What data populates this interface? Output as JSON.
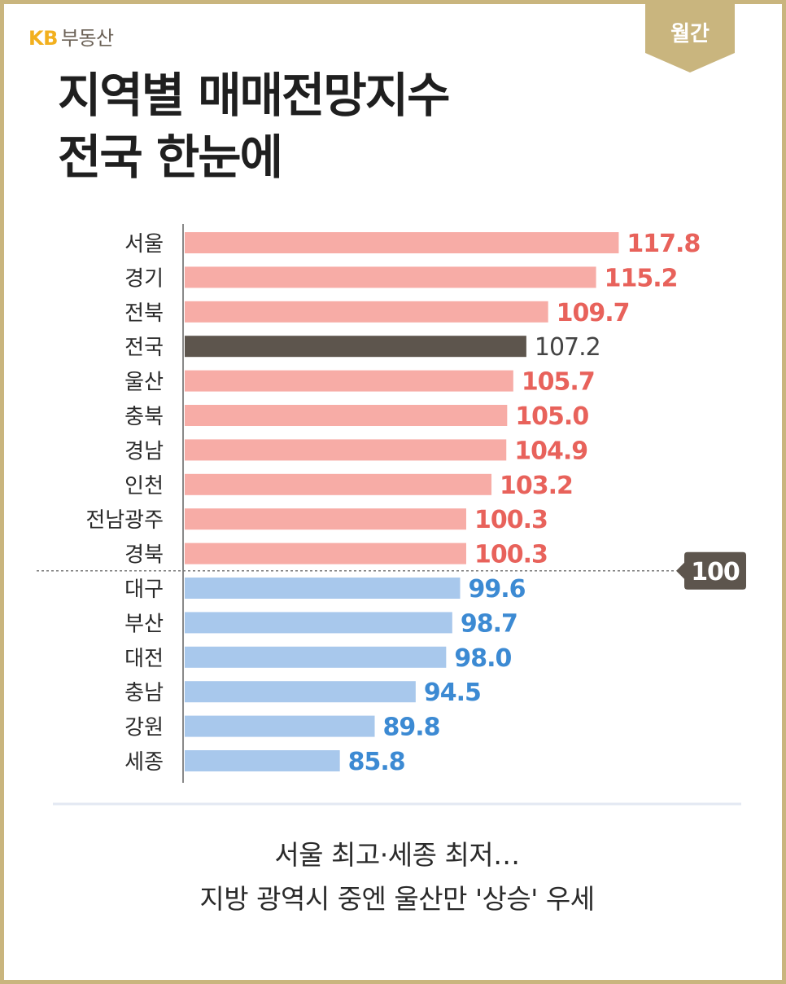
{
  "brand": {
    "kb": "KB",
    "label": "부동산"
  },
  "badge": "월간",
  "title": {
    "line1": "지역별 매매전망지수",
    "line2": "전국 한눈에"
  },
  "subtitle": {
    "line1": "서울 최고·세종 최저…",
    "line2": "지방 광역시 중엔 울산만 '상승' 우세"
  },
  "colors": {
    "above": "#f7aca6",
    "above_label": "#e8625b",
    "below": "#a8c8ec",
    "below_label": "#3c8ad3",
    "national": "#5d554d",
    "national_label": "#444444",
    "reference_badge": "#5d554d",
    "frame": "#c9b57e"
  },
  "chart_data": {
    "type": "bar",
    "orientation": "horizontal",
    "categories": [
      "서울",
      "경기",
      "전북",
      "전국",
      "울산",
      "충북",
      "경남",
      "인천",
      "전남광주",
      "경북",
      "대구",
      "부산",
      "대전",
      "충남",
      "강원",
      "세종"
    ],
    "values": [
      117.8,
      115.2,
      109.7,
      107.2,
      105.7,
      105.0,
      104.9,
      103.2,
      100.3,
      100.3,
      99.6,
      98.7,
      98.0,
      94.5,
      89.8,
      85.8
    ],
    "value_labels": [
      "117.8",
      "115.2",
      "109.7",
      "107.2",
      "105.7",
      "105.0",
      "104.9",
      "103.2",
      "100.3",
      "100.3",
      "99.6",
      "98.7",
      "98.0",
      "94.5",
      "89.8",
      "85.8"
    ],
    "highlight": "전국",
    "reference_line": {
      "value": 100,
      "label": "100"
    },
    "xlim": [
      68,
      118.6
    ],
    "grid": false,
    "title": "",
    "xlabel": "",
    "ylabel": ""
  }
}
